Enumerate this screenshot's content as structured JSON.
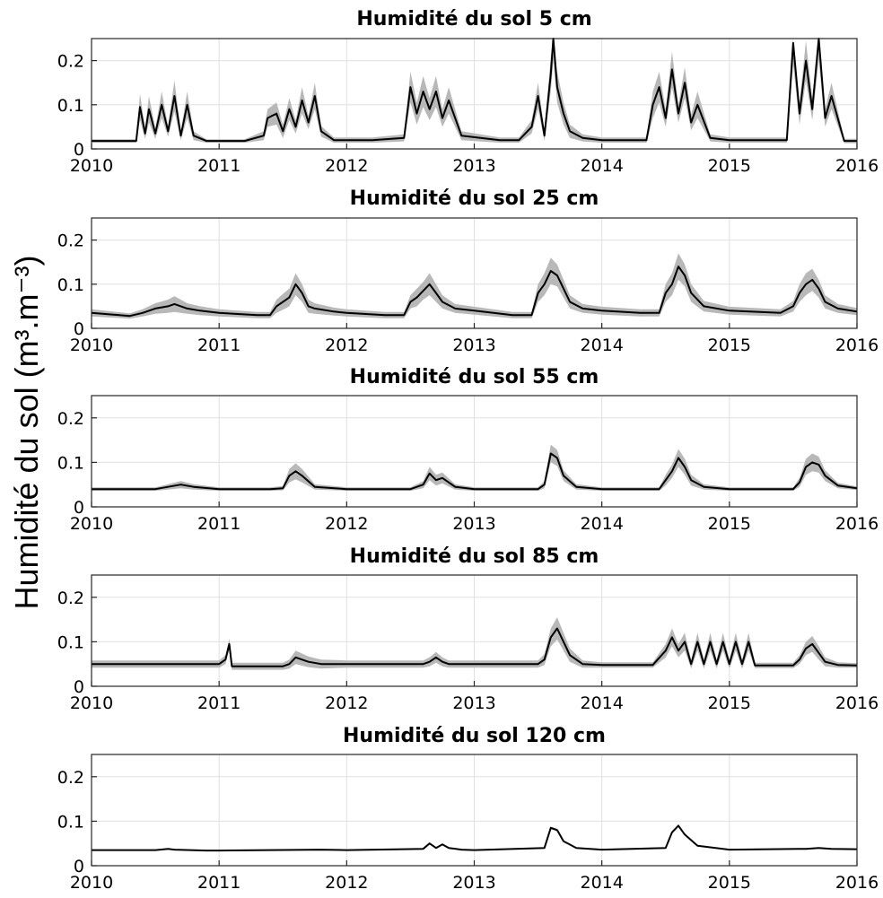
{
  "figure": {
    "ylabel": "Humidité du sol (m³.m⁻³)"
  },
  "chart_data": [
    {
      "type": "line",
      "title": "Humidité du sol 5 cm",
      "xlim": [
        2010,
        2016
      ],
      "ylim": [
        0,
        0.25
      ],
      "x_ticks": [
        "2010",
        "2011",
        "2012",
        "2013",
        "2014",
        "2015",
        "2016"
      ],
      "y_ticks": [
        "0",
        "0.1",
        "0.2"
      ],
      "grid": true,
      "baseline": 0.02,
      "x": [
        2010.0,
        2010.35,
        2010.38,
        2010.42,
        2010.45,
        2010.5,
        2010.55,
        2010.6,
        2010.65,
        2010.7,
        2010.75,
        2010.8,
        2010.9,
        2011.2,
        2011.35,
        2011.38,
        2011.45,
        2011.5,
        2011.55,
        2011.6,
        2011.65,
        2011.7,
        2011.75,
        2011.8,
        2011.9,
        2012.2,
        2012.45,
        2012.5,
        2012.55,
        2012.6,
        2012.65,
        2012.7,
        2012.75,
        2012.8,
        2012.9,
        2013.2,
        2013.35,
        2013.45,
        2013.5,
        2013.55,
        2013.6,
        2013.62,
        2013.65,
        2013.7,
        2013.75,
        2013.85,
        2014.0,
        2014.35,
        2014.4,
        2014.45,
        2014.5,
        2014.55,
        2014.6,
        2014.65,
        2014.7,
        2014.75,
        2014.85,
        2015.0,
        2015.45,
        2015.5,
        2015.55,
        2015.6,
        2015.65,
        2015.7,
        2015.75,
        2015.8,
        2015.9,
        2016.0
      ],
      "y": [
        0.018,
        0.018,
        0.095,
        0.035,
        0.09,
        0.035,
        0.1,
        0.04,
        0.12,
        0.03,
        0.1,
        0.03,
        0.018,
        0.018,
        0.03,
        0.07,
        0.08,
        0.04,
        0.09,
        0.05,
        0.11,
        0.06,
        0.12,
        0.04,
        0.02,
        0.02,
        0.025,
        0.14,
        0.08,
        0.13,
        0.09,
        0.13,
        0.07,
        0.11,
        0.03,
        0.02,
        0.02,
        0.05,
        0.12,
        0.03,
        0.17,
        0.25,
        0.14,
        0.08,
        0.04,
        0.025,
        0.02,
        0.02,
        0.1,
        0.14,
        0.07,
        0.18,
        0.08,
        0.15,
        0.06,
        0.1,
        0.025,
        0.02,
        0.02,
        0.24,
        0.08,
        0.2,
        0.09,
        0.25,
        0.07,
        0.12,
        0.018,
        0.018
      ],
      "band": [
        0.004,
        0.004,
        0.03,
        0.012,
        0.03,
        0.012,
        0.03,
        0.012,
        0.035,
        0.01,
        0.03,
        0.01,
        0.004,
        0.004,
        0.01,
        0.02,
        0.025,
        0.015,
        0.025,
        0.015,
        0.03,
        0.015,
        0.03,
        0.012,
        0.006,
        0.006,
        0.008,
        0.035,
        0.025,
        0.035,
        0.025,
        0.035,
        0.02,
        0.03,
        0.01,
        0.006,
        0.006,
        0.015,
        0.03,
        0.012,
        0.04,
        0.05,
        0.035,
        0.025,
        0.015,
        0.008,
        0.006,
        0.006,
        0.03,
        0.035,
        0.02,
        0.04,
        0.02,
        0.035,
        0.018,
        0.03,
        0.008,
        0.006,
        0.006,
        0.05,
        0.025,
        0.045,
        0.025,
        0.05,
        0.02,
        0.03,
        0.005,
        0.005
      ]
    },
    {
      "type": "line",
      "title": "Humidité du sol 25 cm",
      "xlim": [
        2010,
        2016
      ],
      "ylim": [
        0,
        0.25
      ],
      "x_ticks": [
        "2010",
        "2011",
        "2012",
        "2013",
        "2014",
        "2015",
        "2016"
      ],
      "y_ticks": [
        "0",
        "0.1",
        "0.2"
      ],
      "grid": true,
      "baseline": 0.0,
      "x": [
        2010.0,
        2010.3,
        2010.4,
        2010.5,
        2010.6,
        2010.65,
        2010.7,
        2010.75,
        2010.85,
        2011.0,
        2011.3,
        2011.4,
        2011.45,
        2011.5,
        2011.55,
        2011.6,
        2011.65,
        2011.7,
        2011.75,
        2011.9,
        2012.0,
        2012.3,
        2012.45,
        2012.5,
        2012.55,
        2012.6,
        2012.65,
        2012.7,
        2012.75,
        2012.85,
        2013.0,
        2013.3,
        2013.45,
        2013.5,
        2013.55,
        2013.6,
        2013.65,
        2013.7,
        2013.75,
        2013.85,
        2014.0,
        2014.3,
        2014.45,
        2014.5,
        2014.55,
        2014.6,
        2014.65,
        2014.7,
        2014.8,
        2015.0,
        2015.4,
        2015.5,
        2015.55,
        2015.6,
        2015.65,
        2015.7,
        2015.75,
        2015.85,
        2016.0
      ],
      "y": [
        0.035,
        0.028,
        0.035,
        0.045,
        0.05,
        0.055,
        0.05,
        0.045,
        0.04,
        0.035,
        0.03,
        0.03,
        0.05,
        0.06,
        0.07,
        0.1,
        0.08,
        0.05,
        0.045,
        0.038,
        0.035,
        0.03,
        0.03,
        0.06,
        0.07,
        0.085,
        0.1,
        0.08,
        0.06,
        0.045,
        0.04,
        0.03,
        0.03,
        0.08,
        0.1,
        0.13,
        0.12,
        0.09,
        0.06,
        0.045,
        0.04,
        0.035,
        0.035,
        0.08,
        0.1,
        0.14,
        0.12,
        0.08,
        0.05,
        0.04,
        0.035,
        0.05,
        0.08,
        0.1,
        0.11,
        0.09,
        0.06,
        0.045,
        0.038
      ],
      "band": [
        0.008,
        0.006,
        0.008,
        0.012,
        0.015,
        0.018,
        0.015,
        0.012,
        0.01,
        0.008,
        0.007,
        0.007,
        0.015,
        0.018,
        0.02,
        0.025,
        0.02,
        0.015,
        0.012,
        0.009,
        0.008,
        0.007,
        0.007,
        0.015,
        0.02,
        0.02,
        0.025,
        0.02,
        0.015,
        0.01,
        0.009,
        0.007,
        0.007,
        0.02,
        0.025,
        0.03,
        0.025,
        0.02,
        0.015,
        0.01,
        0.009,
        0.008,
        0.008,
        0.02,
        0.025,
        0.03,
        0.025,
        0.02,
        0.012,
        0.009,
        0.008,
        0.012,
        0.02,
        0.025,
        0.025,
        0.02,
        0.015,
        0.01,
        0.008
      ]
    },
    {
      "type": "line",
      "title": "Humidité du sol 55 cm",
      "xlim": [
        2010,
        2016
      ],
      "ylim": [
        0,
        0.25
      ],
      "x_ticks": [
        "2010",
        "2011",
        "2012",
        "2013",
        "2014",
        "2015",
        "2016"
      ],
      "y_ticks": [
        "0",
        "0.1",
        "0.2"
      ],
      "grid": true,
      "baseline": 0.0,
      "x": [
        2010.0,
        2010.5,
        2010.6,
        2010.7,
        2010.8,
        2011.0,
        2011.4,
        2011.5,
        2011.55,
        2011.6,
        2011.65,
        2011.75,
        2012.0,
        2012.5,
        2012.6,
        2012.65,
        2012.7,
        2012.75,
        2012.85,
        2013.0,
        2013.5,
        2013.55,
        2013.6,
        2013.65,
        2013.7,
        2013.8,
        2014.0,
        2014.45,
        2014.5,
        2014.55,
        2014.6,
        2014.65,
        2014.7,
        2014.8,
        2015.0,
        2015.5,
        2015.55,
        2015.6,
        2015.65,
        2015.7,
        2015.75,
        2015.85,
        2016.0
      ],
      "y": [
        0.04,
        0.04,
        0.045,
        0.05,
        0.045,
        0.04,
        0.04,
        0.042,
        0.07,
        0.08,
        0.07,
        0.045,
        0.04,
        0.04,
        0.05,
        0.075,
        0.06,
        0.065,
        0.045,
        0.04,
        0.04,
        0.05,
        0.12,
        0.11,
        0.07,
        0.045,
        0.04,
        0.04,
        0.06,
        0.08,
        0.11,
        0.09,
        0.06,
        0.045,
        0.04,
        0.04,
        0.055,
        0.09,
        0.1,
        0.095,
        0.07,
        0.048,
        0.042
      ],
      "band": [
        0.004,
        0.004,
        0.006,
        0.008,
        0.006,
        0.004,
        0.004,
        0.005,
        0.015,
        0.018,
        0.015,
        0.006,
        0.004,
        0.004,
        0.008,
        0.015,
        0.012,
        0.012,
        0.006,
        0.004,
        0.004,
        0.008,
        0.02,
        0.018,
        0.012,
        0.006,
        0.004,
        0.004,
        0.012,
        0.015,
        0.02,
        0.018,
        0.012,
        0.006,
        0.004,
        0.004,
        0.01,
        0.018,
        0.02,
        0.018,
        0.012,
        0.006,
        0.004
      ]
    },
    {
      "type": "line",
      "title": "Humidité du sol 85 cm",
      "xlim": [
        2010,
        2016
      ],
      "ylim": [
        0,
        0.25
      ],
      "x_ticks": [
        "2010",
        "2011",
        "2012",
        "2013",
        "2014",
        "2015",
        "2016"
      ],
      "y_ticks": [
        "0",
        "0.1",
        "0.2"
      ],
      "grid": true,
      "baseline": 0.0,
      "x": [
        2010.0,
        2010.5,
        2011.0,
        2011.05,
        2011.08,
        2011.1,
        2011.5,
        2011.55,
        2011.6,
        2011.7,
        2011.8,
        2012.0,
        2012.6,
        2012.65,
        2012.7,
        2012.75,
        2012.8,
        2013.0,
        2013.5,
        2013.55,
        2013.6,
        2013.65,
        2013.7,
        2013.75,
        2013.85,
        2014.0,
        2014.4,
        2014.5,
        2014.55,
        2014.6,
        2014.65,
        2014.7,
        2014.75,
        2014.8,
        2014.85,
        2014.9,
        2014.95,
        2015.0,
        2015.05,
        2015.1,
        2015.15,
        2015.2,
        2015.5,
        2015.55,
        2015.6,
        2015.65,
        2015.7,
        2015.75,
        2015.85,
        2016.0
      ],
      "y": [
        0.05,
        0.05,
        0.05,
        0.06,
        0.095,
        0.045,
        0.045,
        0.05,
        0.065,
        0.055,
        0.05,
        0.05,
        0.05,
        0.055,
        0.065,
        0.055,
        0.05,
        0.05,
        0.05,
        0.06,
        0.11,
        0.13,
        0.1,
        0.07,
        0.05,
        0.048,
        0.048,
        0.08,
        0.11,
        0.08,
        0.1,
        0.05,
        0.1,
        0.05,
        0.1,
        0.05,
        0.1,
        0.05,
        0.1,
        0.05,
        0.1,
        0.047,
        0.047,
        0.06,
        0.085,
        0.095,
        0.075,
        0.055,
        0.048,
        0.047
      ],
      "band": [
        0.008,
        0.008,
        0.008,
        0.01,
        0.012,
        0.008,
        0.008,
        0.01,
        0.015,
        0.012,
        0.01,
        0.008,
        0.008,
        0.01,
        0.012,
        0.01,
        0.008,
        0.008,
        0.008,
        0.012,
        0.02,
        0.025,
        0.02,
        0.015,
        0.008,
        0.006,
        0.006,
        0.015,
        0.02,
        0.015,
        0.02,
        0.01,
        0.02,
        0.01,
        0.02,
        0.01,
        0.02,
        0.01,
        0.02,
        0.01,
        0.02,
        0.006,
        0.006,
        0.01,
        0.015,
        0.018,
        0.015,
        0.01,
        0.006,
        0.005
      ]
    },
    {
      "type": "line",
      "title": "Humidité du sol 120 cm",
      "xlim": [
        2010,
        2016
      ],
      "ylim": [
        0,
        0.25
      ],
      "x_ticks": [
        "2010",
        "2011",
        "2012",
        "2013",
        "2014",
        "2015",
        "2016"
      ],
      "y_ticks": [
        "0",
        "0.1",
        "0.2"
      ],
      "grid": true,
      "baseline": 0.0,
      "x": [
        2010.0,
        2010.5,
        2010.6,
        2010.65,
        2010.9,
        2011.0,
        2011.8,
        2012.0,
        2012.6,
        2012.65,
        2012.7,
        2012.75,
        2012.8,
        2012.9,
        2013.0,
        2013.55,
        2013.6,
        2013.65,
        2013.7,
        2013.8,
        2014.0,
        2014.5,
        2014.55,
        2014.6,
        2014.65,
        2014.75,
        2015.0,
        2015.6,
        2015.7,
        2015.8,
        2016.0
      ],
      "y": [
        0.035,
        0.035,
        0.038,
        0.036,
        0.034,
        0.034,
        0.036,
        0.035,
        0.038,
        0.05,
        0.04,
        0.048,
        0.04,
        0.036,
        0.035,
        0.04,
        0.085,
        0.08,
        0.055,
        0.04,
        0.036,
        0.04,
        0.075,
        0.09,
        0.07,
        0.045,
        0.036,
        0.038,
        0.04,
        0.038,
        0.037
      ],
      "band": [
        0.001,
        0.001,
        0.001,
        0.001,
        0.001,
        0.001,
        0.001,
        0.001,
        0.001,
        0.002,
        0.001,
        0.002,
        0.001,
        0.001,
        0.001,
        0.001,
        0.003,
        0.003,
        0.002,
        0.001,
        0.001,
        0.001,
        0.003,
        0.003,
        0.002,
        0.001,
        0.001,
        0.001,
        0.001,
        0.001,
        0.001
      ]
    }
  ]
}
